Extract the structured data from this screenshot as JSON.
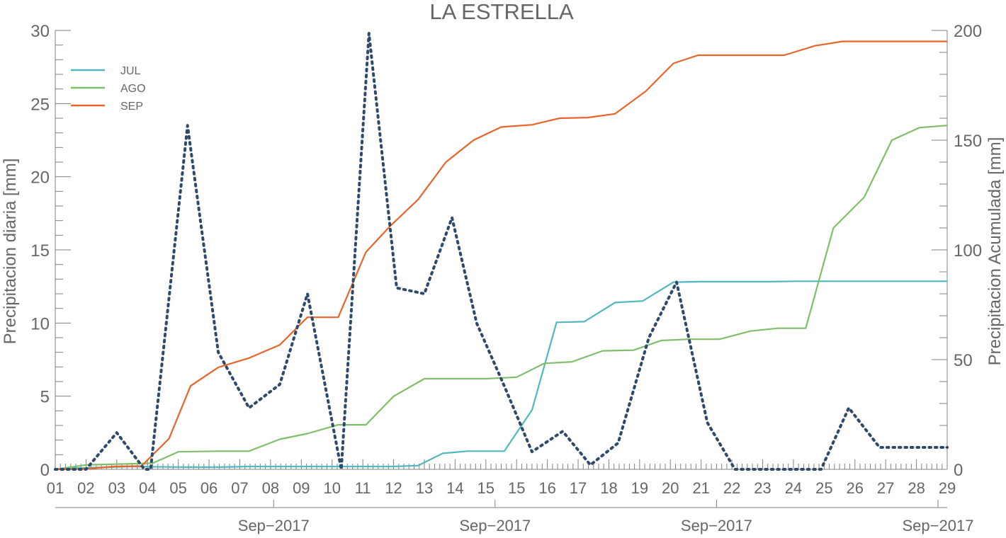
{
  "chart_data": {
    "type": "line",
    "title": "LA ESTRELLA",
    "ylabel_left": "Precipitacion diaria [mm]",
    "ylabel_right": "Precipitacion Acumulada [mm]",
    "ylim_left": [
      0,
      30
    ],
    "ylim_right": [
      0,
      200
    ],
    "yticks_left": [
      "0",
      "5",
      "10",
      "15",
      "20",
      "25",
      "30"
    ],
    "yticks_right": [
      "0",
      "50",
      "100",
      "150",
      "200"
    ],
    "xticks": [
      "01",
      "02",
      "03",
      "04",
      "05",
      "06",
      "07",
      "08",
      "09",
      "10",
      "11",
      "12",
      "13",
      "14",
      "15",
      "15",
      "16",
      "17",
      "18",
      "19",
      "20",
      "21",
      "22",
      "23",
      "24",
      "25",
      "26",
      "27",
      "28",
      "29"
    ],
    "month_labels": [
      "Sep−2017",
      "Sep−2017",
      "Sep−2017",
      "Sep−2017"
    ],
    "legend_position": "top-left",
    "colors": {
      "JUL": "#4fb8c0",
      "AGO": "#7fbf6a",
      "SEP": "#e8652a",
      "daily": "#2e4a6b"
    },
    "series": [
      {
        "name": "JUL",
        "axis": "right",
        "x": [
          0,
          0.5,
          2.5,
          2.5,
          4.3,
          5.3,
          6.3,
          7.3,
          8.3,
          9.3,
          10.2,
          11.0,
          11.8,
          12.6,
          13.4,
          14.0,
          14.6,
          15.5,
          16.3,
          17.2,
          18.2,
          19.1,
          20.1,
          21.0,
          22.2,
          23.2,
          24.1,
          25.1,
          26.1,
          27.1,
          28.0,
          29.0
        ],
        "y": [
          0,
          0.5,
          1.3,
          1.3,
          1.0,
          1.0,
          1.3,
          1.3,
          1.3,
          1.3,
          1.3,
          1.3,
          1.7,
          7.3,
          8.3,
          8.3,
          8.3,
          27,
          67,
          67.3,
          76,
          76.7,
          85.3,
          85.5,
          85.5,
          85.5,
          85.7,
          85.7,
          85.7,
          85.7,
          85.7,
          85.7
        ]
      },
      {
        "name": "AGO",
        "axis": "right",
        "x": [
          0,
          1.0,
          2.0,
          3.0,
          3.2,
          4.0,
          5.3,
          6.3,
          7.3,
          8.2,
          9.2,
          10.1,
          11.0,
          12.0,
          13.0,
          14.0,
          15.0,
          15.9,
          16.8,
          17.8,
          18.8,
          19.7,
          20.6,
          21.6,
          22.6,
          23.5,
          24.4,
          25.3,
          26.3,
          27.2,
          28.1,
          29.0
        ],
        "y": [
          0,
          2.0,
          2.4,
          2.7,
          3.0,
          8.0,
          8.3,
          8.3,
          13.7,
          16.3,
          20.3,
          20.3,
          33.3,
          41.3,
          41.3,
          41.3,
          42.0,
          48.3,
          49.0,
          54.0,
          54.3,
          58.7,
          59.3,
          59.3,
          63.0,
          64.3,
          64.3,
          110.0,
          124.0,
          150.0,
          155.7,
          156.7
        ]
      },
      {
        "name": "SEP",
        "axis": "right",
        "x": [
          0,
          1.0,
          1.9,
          2.8,
          3.7,
          4.4,
          5.3,
          6.3,
          7.3,
          8.2,
          9.2,
          10.1,
          10.9,
          11.8,
          12.7,
          13.6,
          14.5,
          15.5,
          16.4,
          17.3,
          18.2,
          19.2,
          20.1,
          20.9,
          21.9,
          22.8,
          23.7,
          24.7,
          25.6,
          26.6,
          27.5,
          28.4,
          29.0
        ],
        "y": [
          0,
          0.2,
          1.3,
          1.5,
          14.0,
          38.0,
          46.5,
          50.7,
          56.7,
          69.3,
          69.3,
          99.0,
          111.0,
          123.0,
          140.0,
          150.0,
          156.0,
          157.0,
          160.0,
          160.3,
          162.0,
          172.3,
          185.0,
          188.7,
          188.7,
          188.7,
          188.7,
          193.0,
          195.0,
          195.0,
          195.0,
          195.0,
          195.0
        ]
      },
      {
        "name": "",
        "axis": "left",
        "x": [
          0,
          1.0,
          2.0,
          2.9,
          3.1,
          4.3,
          5.3,
          6.3,
          7.3,
          8.2,
          9.3,
          10.2,
          11.1,
          12.0,
          12.9,
          13.7,
          14.6,
          15.5,
          16.5,
          17.4,
          18.3,
          19.3,
          20.2,
          21.2,
          22.1,
          23.0,
          23.9,
          24.9,
          25.8,
          26.8,
          27.7,
          28.6,
          29.0
        ],
        "y": [
          0,
          0,
          2.5,
          0,
          0,
          23.5,
          8.0,
          4.2,
          5.8,
          12.0,
          0,
          29.8,
          12.4,
          12.0,
          17.2,
          10.0,
          5.7,
          1.2,
          2.6,
          0.3,
          1.8,
          9.0,
          12.8,
          3.2,
          0,
          0,
          0,
          0,
          4.2,
          1.5,
          1.5,
          1.5,
          1.5
        ]
      }
    ],
    "legend": [
      "JUL",
      "AGO",
      "SEP"
    ]
  }
}
